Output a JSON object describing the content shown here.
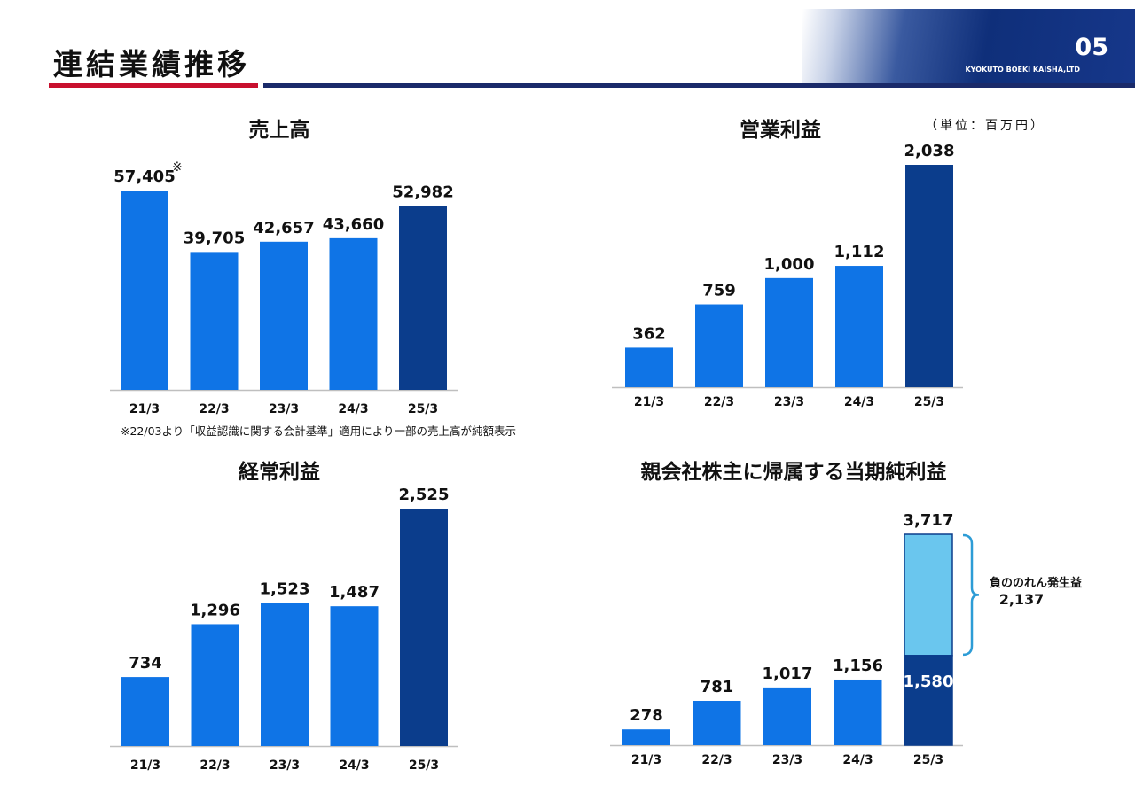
{
  "header": {
    "title": "連結業績推移",
    "page_number": "05",
    "company": "KYOKUTO BOEKI KAISHA,LTD"
  },
  "unit_note": "（単位：百万円）",
  "footnote": "※22/03より「収益認識に関する会計基準」適用により一部の売上高が純額表示",
  "colors": {
    "bar": "#0f74e6",
    "highlight": "#0b3d8c",
    "goodwill": "#6ac6ee",
    "bracket": "#2d9cd6",
    "axis": "#bfbfbf"
  },
  "chart_data": [
    {
      "type": "bar",
      "title": "売上高",
      "categories": [
        "21/3",
        "22/3",
        "23/3",
        "24/3",
        "25/3"
      ],
      "values": [
        57405,
        39705,
        42657,
        43660,
        52982
      ],
      "value_labels": [
        "57,405",
        "39,705",
        "42,657",
        "43,660",
        "52,982"
      ],
      "marker": "※",
      "marker_on": "21/3",
      "highlight": "25/3"
    },
    {
      "type": "bar",
      "title": "営業利益",
      "categories": [
        "21/3",
        "22/3",
        "23/3",
        "24/3",
        "25/3"
      ],
      "values": [
        362,
        759,
        1000,
        1112,
        2038
      ],
      "value_labels": [
        "362",
        "759",
        "1,000",
        "1,112",
        "2,038"
      ],
      "highlight": "25/3"
    },
    {
      "type": "bar",
      "title": "経常利益",
      "categories": [
        "21/3",
        "22/3",
        "23/3",
        "24/3",
        "25/3"
      ],
      "values": [
        734,
        1296,
        1523,
        1487,
        2525
      ],
      "value_labels": [
        "734",
        "1,296",
        "1,523",
        "1,487",
        "2,525"
      ],
      "highlight": "25/3"
    },
    {
      "type": "bar",
      "title": "親会社株主に帰属する当期純利益",
      "categories": [
        "21/3",
        "22/3",
        "23/3",
        "24/3",
        "25/3"
      ],
      "values": [
        278,
        781,
        1017,
        1156,
        3717
      ],
      "value_labels": [
        "278",
        "781",
        "1,017",
        "1,156",
        "3,717"
      ],
      "highlight": "25/3",
      "stack_last": {
        "base_value": 1580,
        "base_label": "1,580",
        "top_value": 2137,
        "top_label": "2,137",
        "top_name": "負ののれん発生益"
      }
    }
  ]
}
